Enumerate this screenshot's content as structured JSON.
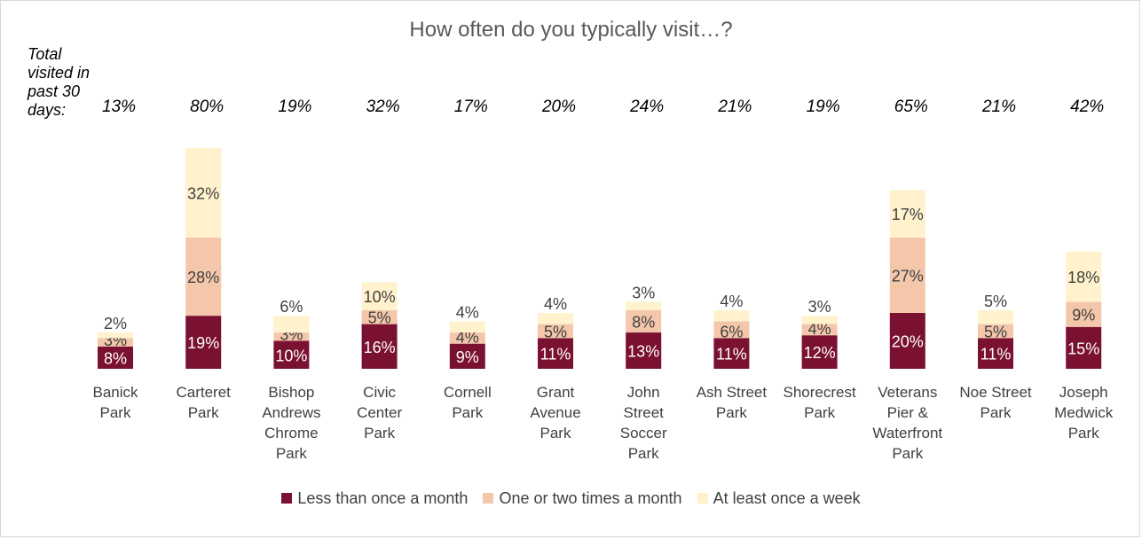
{
  "chart_data": {
    "type": "bar",
    "stacked": true,
    "title": "How often do you typically visit…?",
    "total_label": "Total visited in past 30 days:",
    "categories": [
      [
        "Banick",
        "Park"
      ],
      [
        "Carteret",
        "Park"
      ],
      [
        "Bishop",
        "Andrews",
        "Chrome",
        "Park"
      ],
      [
        "Civic",
        "Center",
        "Park"
      ],
      [
        "Cornell",
        "Park"
      ],
      [
        "Grant",
        "Avenue",
        "Park"
      ],
      [
        "John",
        "Street",
        "Soccer",
        "Park"
      ],
      [
        "Ash Street",
        "Park"
      ],
      [
        "Shorecrest",
        "Park"
      ],
      [
        "Veterans",
        "Pier &",
        "Waterfront",
        "Park"
      ],
      [
        "Noe Street",
        "Park"
      ],
      [
        "Joseph",
        "Medwick",
        "Park"
      ]
    ],
    "totals": [
      "13%",
      "80%",
      "19%",
      "32%",
      "17%",
      "20%",
      "24%",
      "21%",
      "19%",
      "65%",
      "21%",
      "42%"
    ],
    "series": [
      {
        "name": "Less than once a month",
        "color": "#7b1130",
        "values": [
          8,
          19,
          10,
          16,
          9,
          11,
          13,
          11,
          12,
          20,
          11,
          15
        ]
      },
      {
        "name": "One or two times a month",
        "color": "#f4c7ab",
        "values": [
          3,
          28,
          3,
          5,
          4,
          5,
          8,
          6,
          4,
          27,
          5,
          9
        ]
      },
      {
        "name": "At least once a week",
        "color": "#fff2cc",
        "values": [
          2,
          32,
          6,
          10,
          4,
          4,
          3,
          4,
          3,
          17,
          5,
          18
        ]
      }
    ],
    "legend_position": "bottom",
    "grid": false
  }
}
